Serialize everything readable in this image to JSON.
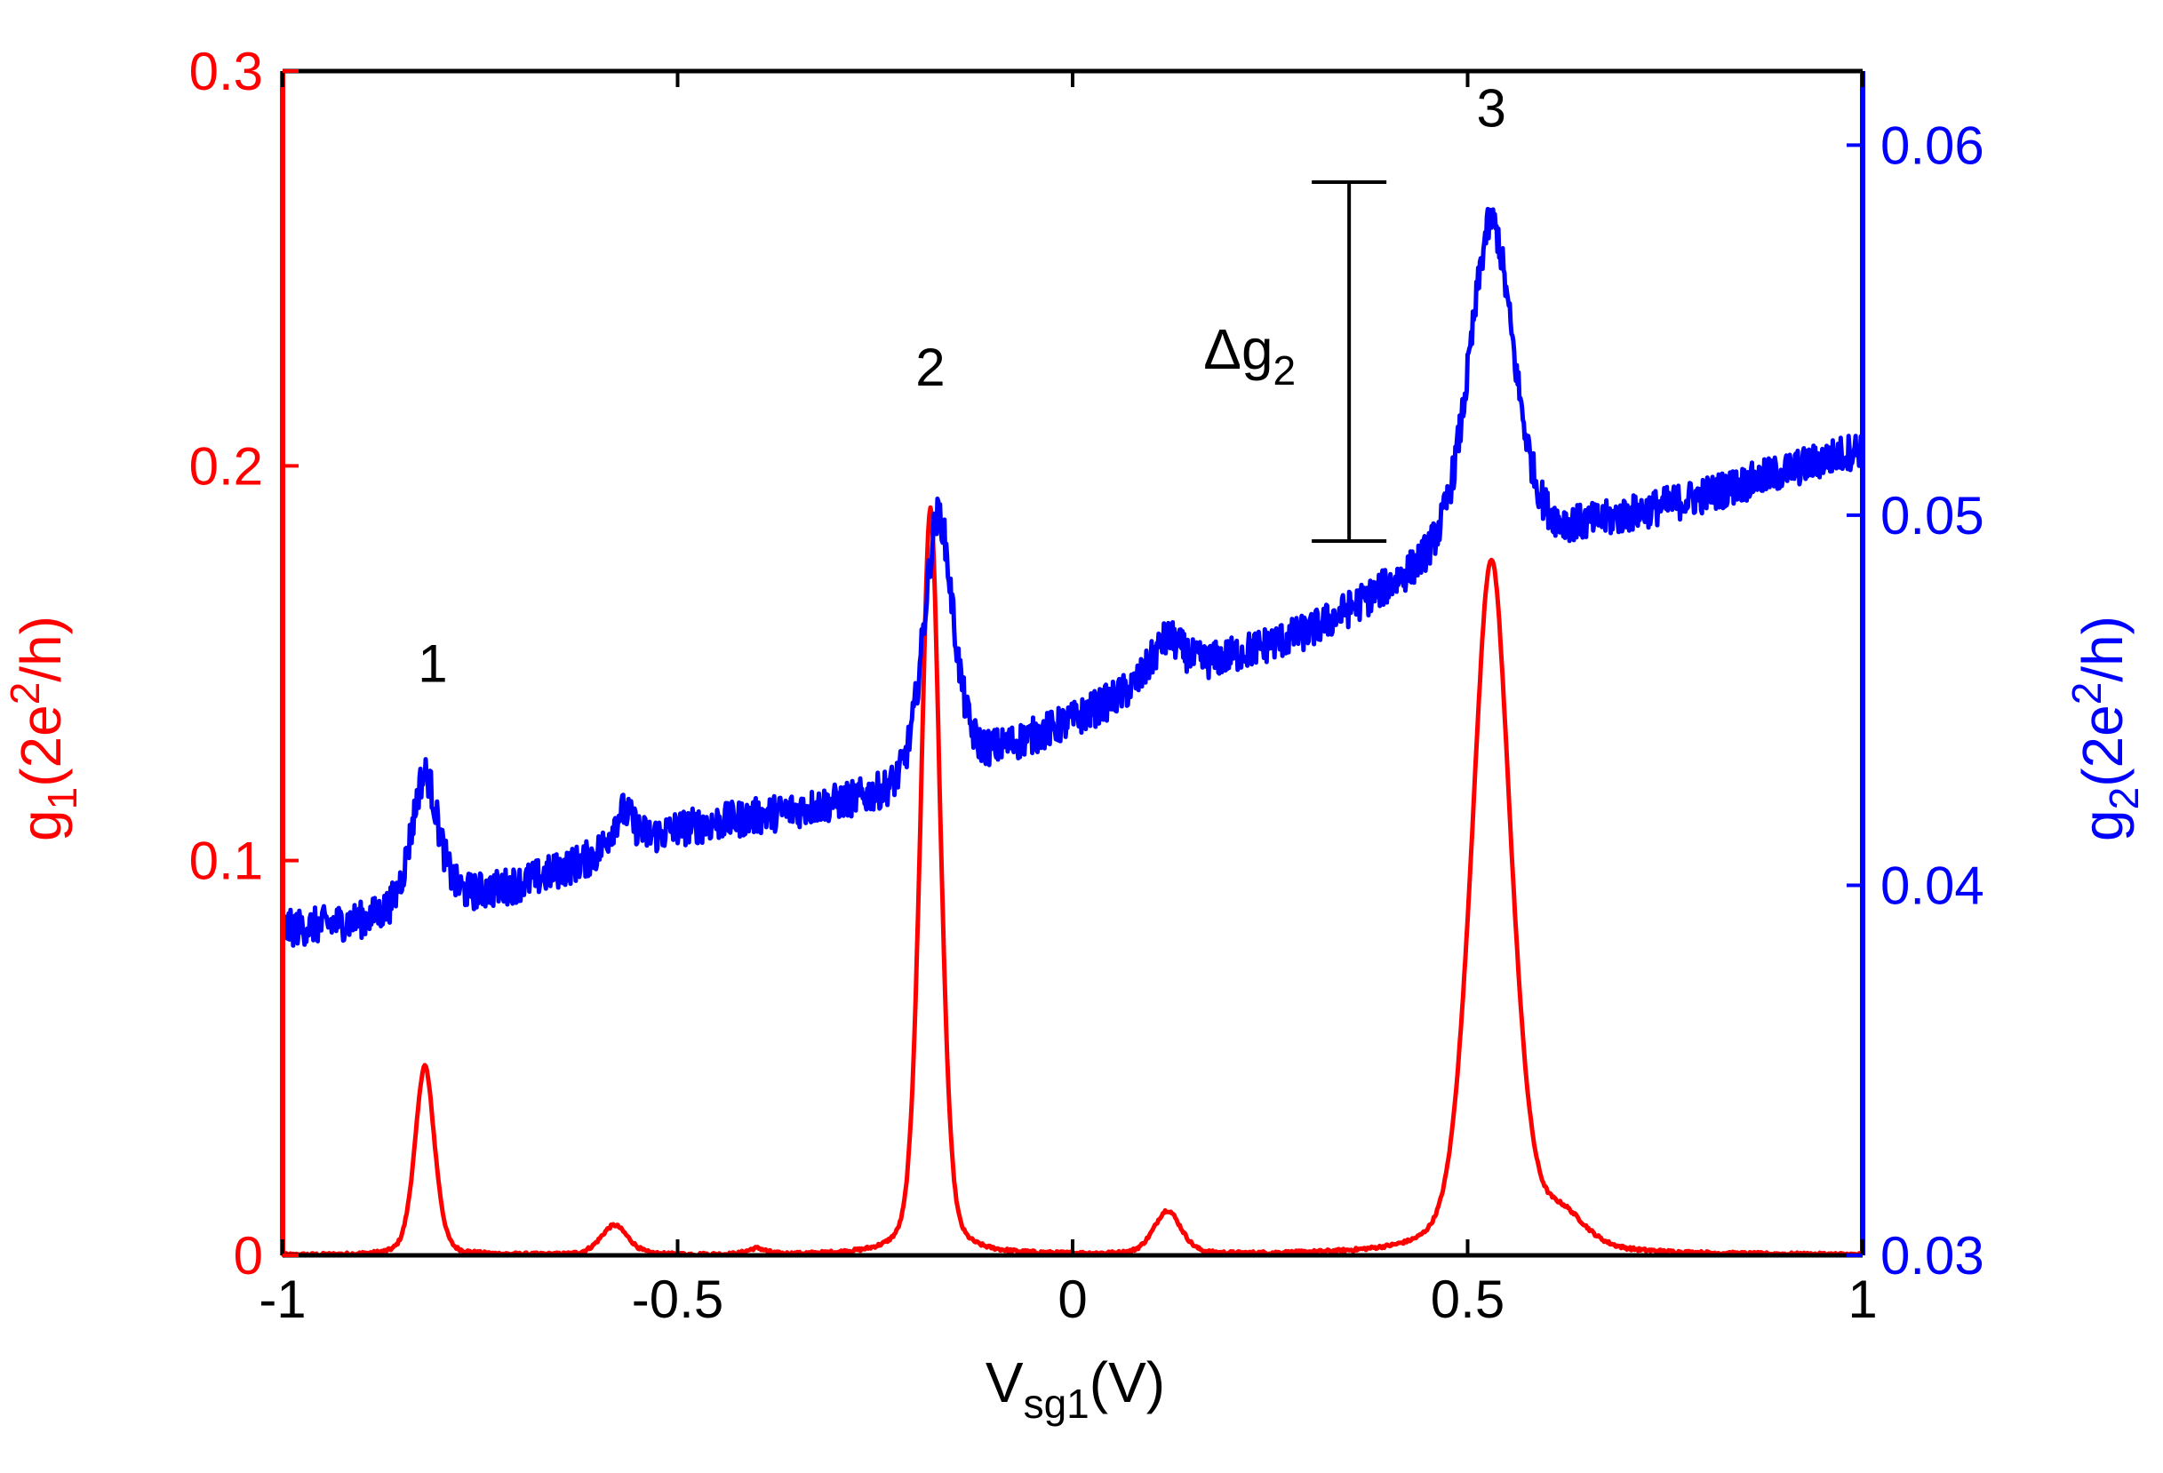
{
  "chart_data": {
    "type": "line",
    "title": "",
    "xlabel": "V",
    "xlabel_sub": "sg1",
    "xlabel_unit": "(V)",
    "ylabel_left": {
      "base": "g",
      "sub": "1",
      "unit_open": "(2e",
      "sup": "2",
      "unit_close": "/h)"
    },
    "ylabel_right": {
      "base": "g",
      "sub": "2",
      "unit_open": "(2e",
      "sup": "2",
      "unit_close": "/h)"
    },
    "xlim": [
      -1,
      1
    ],
    "ylim_left": [
      0,
      0.3
    ],
    "ylim_right": [
      0.03,
      0.062
    ],
    "x_ticks": [
      "-1",
      "-0.5",
      "0",
      "0.5",
      "1"
    ],
    "x_tick_values": [
      -1,
      -0.5,
      0,
      0.5,
      1
    ],
    "y_left_ticks": [
      "0",
      "0.1",
      "0.2",
      "0.3"
    ],
    "y_left_tick_values": [
      0,
      0.1,
      0.2,
      0.3
    ],
    "y_right_ticks": [
      "0.03",
      "0.04",
      "0.05",
      "0.06"
    ],
    "y_right_tick_values": [
      0.03,
      0.04,
      0.05,
      0.06
    ],
    "colors": {
      "g1": "#ff0000",
      "g2": "#0000ff",
      "frame": "#000000"
    },
    "series": [
      {
        "name": "g1",
        "axis": "left",
        "color": "#ff0000",
        "baseline": 0.0,
        "peaks": [
          {
            "x": -0.82,
            "height": 0.048,
            "width": 0.013
          },
          {
            "x": -0.58,
            "height": 0.0075,
            "width": 0.018
          },
          {
            "x": -0.4,
            "height": 0.0015,
            "width": 0.012
          },
          {
            "x": -0.18,
            "height": 0.189,
            "width": 0.013
          },
          {
            "x": 0.12,
            "height": 0.011,
            "width": 0.018
          },
          {
            "x": 0.53,
            "height": 0.176,
            "width": 0.026
          },
          {
            "x": 0.62,
            "height": 0.008,
            "width": 0.03
          }
        ]
      },
      {
        "name": "g2",
        "axis": "right",
        "color": "#0000ff",
        "baseline_points": [
          [
            -1,
            0.0388
          ],
          [
            -0.9,
            0.039
          ],
          [
            -0.7,
            0.04
          ],
          [
            -0.5,
            0.0415
          ],
          [
            -0.2,
            0.0425
          ],
          [
            -0.1,
            0.0435
          ],
          [
            0.0,
            0.0444
          ],
          [
            0.1,
            0.0455
          ],
          [
            0.3,
            0.0468
          ],
          [
            0.45,
            0.0485
          ],
          [
            0.6,
            0.0493
          ],
          [
            0.8,
            0.0505
          ],
          [
            1.0,
            0.0518
          ]
        ],
        "peaks": [
          {
            "x": -0.82,
            "height": 0.0036,
            "width": 0.018
          },
          {
            "x": -0.57,
            "height": 0.001,
            "width": 0.015
          },
          {
            "x": -0.17,
            "height": 0.0072,
            "width": 0.02
          },
          {
            "x": 0.12,
            "height": 0.001,
            "width": 0.02
          },
          {
            "x": 0.53,
            "height": 0.009,
            "width": 0.03
          }
        ],
        "noise": 0.0005
      }
    ],
    "annotations": [
      {
        "text": "1",
        "x": -0.81,
        "y_right": 0.0455
      },
      {
        "text": "2",
        "x": -0.18,
        "y_right": 0.0535
      },
      {
        "text": "3",
        "x": 0.53,
        "y_right": 0.0605
      }
    ],
    "scale_bar": {
      "label_base": "Δg",
      "label_sub": "2",
      "x": 0.35,
      "y_bottom_right": 0.0493,
      "y_top_right": 0.059
    }
  }
}
